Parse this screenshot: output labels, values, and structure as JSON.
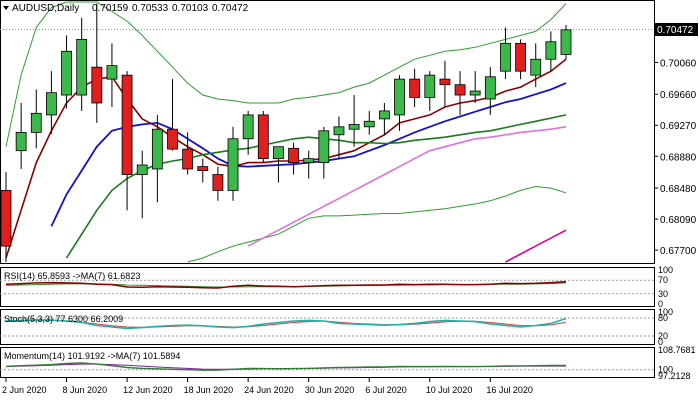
{
  "header": {
    "symbol": "AUDUSD,Daily",
    "open": "0.70159",
    "high": "0.70533",
    "low": "0.70103",
    "close": "0.70472"
  },
  "price_axis": {
    "ticks": [
      "0.70060",
      "0.69660",
      "0.69270",
      "0.68880",
      "0.68480",
      "0.68090",
      "0.67700"
    ],
    "current_price": "0.70472"
  },
  "rsi_pane": {
    "label": "RSI(14) 65.8593 ->MA(7) 61.6823",
    "ticks": [
      "100",
      "70",
      "30",
      "0"
    ]
  },
  "stoch_pane": {
    "label": "Stoch(5,3,3) 77.6300 66.2009",
    "ticks": [
      "100",
      "80",
      "20",
      "0"
    ]
  },
  "momentum_pane": {
    "label": "Momentum(14) 101.9192 ->MA(7) 101.5894",
    "ticks": [
      "108.7681",
      "100",
      "97.2128"
    ]
  },
  "time_axis": {
    "labels": [
      "2 Jun 2020",
      "8 Jun 2020",
      "12 Jun 2020",
      "18 Jun 2020",
      "24 Jun 2020",
      "30 Jun 2020",
      "6 Jul 2020",
      "10 Jul 2020",
      "16 Jul 2020"
    ]
  },
  "colors": {
    "bull_candle": "#3cb84a",
    "bear_candle": "#e01f1f",
    "ma_fast": "#8b0000",
    "ma_blue": "#1010d0",
    "ma_green": "#1a7a1a",
    "ma_magenta": "#e070e0",
    "ma_red_long": "#e000a0",
    "bollinger": "#2e9e2e",
    "rsi_line": "#8b0000",
    "rsi_ma": "#2e8b2e",
    "stoch_main": "#20b2aa",
    "stoch_signal": "#d04040",
    "momentum_line": "#2e7d32",
    "momentum_ma": "#7b1fa2"
  },
  "chart_data": {
    "type": "candlestick",
    "title": "AUDUSD,Daily",
    "ylim": [
      0.6755,
      0.7082
    ],
    "candles": [
      {
        "o": 0.6845,
        "h": 0.6868,
        "l": 0.6755,
        "c": 0.6775
      },
      {
        "o": 0.6895,
        "h": 0.6955,
        "l": 0.6872,
        "c": 0.6918
      },
      {
        "o": 0.6918,
        "h": 0.6972,
        "l": 0.6898,
        "c": 0.6942
      },
      {
        "o": 0.694,
        "h": 0.6995,
        "l": 0.6916,
        "c": 0.6968
      },
      {
        "o": 0.6965,
        "h": 0.704,
        "l": 0.6948,
        "c": 0.702
      },
      {
        "o": 0.6965,
        "h": 0.7062,
        "l": 0.6945,
        "c": 0.7035
      },
      {
        "o": 0.7,
        "h": 0.708,
        "l": 0.693,
        "c": 0.6955
      },
      {
        "o": 0.6985,
        "h": 0.703,
        "l": 0.695,
        "c": 0.7002
      },
      {
        "o": 0.699,
        "h": 0.6995,
        "l": 0.682,
        "c": 0.6865
      },
      {
        "o": 0.6865,
        "h": 0.6895,
        "l": 0.681,
        "c": 0.6877
      },
      {
        "o": 0.6872,
        "h": 0.694,
        "l": 0.683,
        "c": 0.6922
      },
      {
        "o": 0.6922,
        "h": 0.6985,
        "l": 0.6895,
        "c": 0.6897
      },
      {
        "o": 0.6897,
        "h": 0.6918,
        "l": 0.6865,
        "c": 0.6872
      },
      {
        "o": 0.6875,
        "h": 0.6885,
        "l": 0.6855,
        "c": 0.687
      },
      {
        "o": 0.6865,
        "h": 0.6875,
        "l": 0.6832,
        "c": 0.6845
      },
      {
        "o": 0.6845,
        "h": 0.6925,
        "l": 0.6832,
        "c": 0.691
      },
      {
        "o": 0.691,
        "h": 0.6945,
        "l": 0.689,
        "c": 0.694
      },
      {
        "o": 0.694,
        "h": 0.6945,
        "l": 0.688,
        "c": 0.6885
      },
      {
        "o": 0.6885,
        "h": 0.69,
        "l": 0.6855,
        "c": 0.69
      },
      {
        "o": 0.6898,
        "h": 0.6905,
        "l": 0.6865,
        "c": 0.688
      },
      {
        "o": 0.688,
        "h": 0.6895,
        "l": 0.686,
        "c": 0.6885
      },
      {
        "o": 0.688,
        "h": 0.6925,
        "l": 0.686,
        "c": 0.692
      },
      {
        "o": 0.6915,
        "h": 0.6938,
        "l": 0.6885,
        "c": 0.6925
      },
      {
        "o": 0.6922,
        "h": 0.6965,
        "l": 0.69,
        "c": 0.6928
      },
      {
        "o": 0.6925,
        "h": 0.6945,
        "l": 0.6915,
        "c": 0.6932
      },
      {
        "o": 0.6935,
        "h": 0.6955,
        "l": 0.6915,
        "c": 0.6945
      },
      {
        "o": 0.694,
        "h": 0.699,
        "l": 0.692,
        "c": 0.6985
      },
      {
        "o": 0.6985,
        "h": 0.6998,
        "l": 0.695,
        "c": 0.6962
      },
      {
        "o": 0.6962,
        "h": 0.6995,
        "l": 0.6945,
        "c": 0.699
      },
      {
        "o": 0.6985,
        "h": 0.7008,
        "l": 0.695,
        "c": 0.6978
      },
      {
        "o": 0.6978,
        "h": 0.6995,
        "l": 0.694,
        "c": 0.6965
      },
      {
        "o": 0.6965,
        "h": 0.6995,
        "l": 0.6955,
        "c": 0.697
      },
      {
        "o": 0.696,
        "h": 0.7,
        "l": 0.694,
        "c": 0.6988
      },
      {
        "o": 0.6995,
        "h": 0.705,
        "l": 0.6985,
        "c": 0.703
      },
      {
        "o": 0.703,
        "h": 0.7035,
        "l": 0.6985,
        "c": 0.6995
      },
      {
        "o": 0.699,
        "h": 0.703,
        "l": 0.6975,
        "c": 0.701
      },
      {
        "o": 0.701,
        "h": 0.7045,
        "l": 0.6995,
        "c": 0.7032
      },
      {
        "o": 0.7016,
        "h": 0.7053,
        "l": 0.701,
        "c": 0.7047
      }
    ],
    "x_labels": [
      "2 Jun 2020",
      "8 Jun 2020",
      "12 Jun 2020",
      "18 Jun 2020",
      "24 Jun 2020",
      "30 Jun 2020",
      "6 Jul 2020",
      "10 Jul 2020",
      "16 Jul 2020"
    ],
    "overlays": [
      {
        "key": "bb_upper",
        "values": [
          0.69,
          0.699,
          0.705,
          0.7075,
          0.7082,
          0.7082,
          0.7082,
          0.707,
          0.7058,
          0.704,
          0.702,
          0.7,
          0.698,
          0.6965,
          0.696,
          0.6958,
          0.6955,
          0.6955,
          0.6955,
          0.696,
          0.6962,
          0.6965,
          0.6968,
          0.6975,
          0.698,
          0.699,
          0.7,
          0.701,
          0.7015,
          0.702,
          0.7022,
          0.7025,
          0.703,
          0.7035,
          0.704,
          0.7045,
          0.706,
          0.708
        ]
      },
      {
        "key": "bb_lower",
        "values": [
          null,
          null,
          null,
          null,
          null,
          null,
          null,
          null,
          null,
          null,
          null,
          null,
          0.6755,
          0.676,
          0.6768,
          0.6775,
          0.678,
          0.6785,
          0.679,
          0.68,
          0.681,
          0.6813,
          0.6813,
          0.6814,
          0.6815,
          0.6816,
          0.6816,
          0.6818,
          0.682,
          0.6822,
          0.6825,
          0.6828,
          0.6832,
          0.6838,
          0.6845,
          0.685,
          0.6848,
          0.6842
        ]
      },
      {
        "key": "ma_fast",
        "values": [
          0.676,
          0.682,
          0.688,
          0.692,
          0.6955,
          0.6975,
          0.6985,
          0.6988,
          0.696,
          0.6935,
          0.6925,
          0.6912,
          0.69,
          0.689,
          0.6878,
          0.6875,
          0.688,
          0.688,
          0.6882,
          0.6882,
          0.6883,
          0.6885,
          0.689,
          0.6895,
          0.6905,
          0.6915,
          0.693,
          0.6935,
          0.694,
          0.695,
          0.6955,
          0.6958,
          0.6962,
          0.697,
          0.6975,
          0.6985,
          0.6995,
          0.701
        ]
      },
      {
        "key": "ma_blue",
        "values": [
          null,
          null,
          null,
          0.68,
          0.684,
          0.687,
          0.69,
          0.692,
          0.6925,
          0.6928,
          0.693,
          0.6922,
          0.691,
          0.6898,
          0.6885,
          0.6876,
          0.6875,
          0.6876,
          0.6877,
          0.6878,
          0.688,
          0.6882,
          0.6885,
          0.6888,
          0.6895,
          0.6902,
          0.691,
          0.6918,
          0.6925,
          0.6932,
          0.6938,
          0.6944,
          0.695,
          0.6956,
          0.696,
          0.6966,
          0.6972,
          0.698
        ]
      },
      {
        "key": "ma_green",
        "values": [
          null,
          null,
          null,
          null,
          0.676,
          0.679,
          0.682,
          0.6845,
          0.686,
          0.687,
          0.6878,
          0.6882,
          0.6885,
          0.689,
          0.6893,
          0.6896,
          0.6898,
          0.6902,
          0.6906,
          0.691,
          0.6912,
          0.691,
          0.6908,
          0.6905,
          0.6905,
          0.6904,
          0.6905,
          0.6908,
          0.691,
          0.6912,
          0.6915,
          0.6918,
          0.692,
          0.6924,
          0.6928,
          0.6932,
          0.6936,
          0.694
        ]
      },
      {
        "key": "ma_magenta",
        "values": [
          null,
          null,
          null,
          null,
          null,
          null,
          null,
          null,
          null,
          null,
          null,
          null,
          null,
          null,
          null,
          null,
          0.6775,
          0.6785,
          0.6795,
          0.6805,
          0.6815,
          0.6825,
          0.6835,
          0.6845,
          0.6855,
          0.6865,
          0.6875,
          0.6885,
          0.6895,
          0.69,
          0.6905,
          0.691,
          0.6912,
          0.6915,
          0.6918,
          0.692,
          0.6922,
          0.6925
        ]
      },
      {
        "key": "ma_red_long",
        "values": [
          null,
          null,
          null,
          null,
          null,
          null,
          null,
          null,
          null,
          null,
          null,
          null,
          null,
          null,
          null,
          null,
          null,
          null,
          null,
          null,
          null,
          null,
          null,
          null,
          null,
          null,
          null,
          null,
          null,
          null,
          null,
          null,
          null,
          0.6755,
          0.6765,
          0.6775,
          0.6785,
          0.6795
        ]
      }
    ],
    "rsi": [
      58,
      60,
      62,
      63,
      62,
      61,
      58,
      57,
      50,
      49,
      51,
      50,
      49,
      48,
      47,
      52,
      55,
      53,
      52,
      51,
      52,
      54,
      55,
      55,
      56,
      56,
      58,
      57,
      58,
      58,
      57,
      57,
      58,
      61,
      60,
      61,
      63,
      66
    ],
    "rsi_ma": [
      55,
      56,
      57,
      58,
      59,
      59,
      59,
      58,
      56,
      55,
      54,
      53,
      52,
      51,
      50,
      50,
      51,
      51,
      51,
      51,
      52,
      52,
      53,
      54,
      54,
      55,
      55,
      56,
      56,
      57,
      57,
      57,
      58,
      58,
      58,
      59,
      60,
      62
    ],
    "stoch_main": [
      70,
      72,
      74,
      73,
      70,
      65,
      55,
      50,
      45,
      48,
      52,
      55,
      56,
      54,
      50,
      48,
      52,
      60,
      65,
      70,
      72,
      70,
      62,
      60,
      58,
      56,
      58,
      62,
      68,
      72,
      70,
      68,
      60,
      55,
      50,
      55,
      62,
      78
    ],
    "stoch_signal": [
      68,
      70,
      72,
      72,
      70,
      66,
      60,
      54,
      50,
      49,
      50,
      52,
      54,
      54,
      52,
      50,
      51,
      55,
      60,
      65,
      68,
      70,
      66,
      62,
      60,
      58,
      57,
      59,
      63,
      67,
      69,
      69,
      65,
      60,
      55,
      54,
      57,
      66
    ],
    "momentum": [
      101.5,
      101.8,
      102.0,
      102.3,
      102.8,
      103.0,
      102.5,
      101.8,
      101.0,
      100.6,
      100.4,
      100.2,
      100.0,
      99.8,
      99.9,
      100.2,
      100.6,
      100.5,
      100.4,
      100.5,
      100.6,
      100.8,
      101.0,
      101.1,
      101.2,
      101.2,
      101.5,
      101.4,
      101.4,
      101.5,
      101.4,
      101.4,
      101.5,
      101.7,
      101.7,
      101.8,
      101.9,
      101.9
    ],
    "momentum_ma": [
      101.4,
      101.6,
      101.8,
      102.0,
      102.3,
      102.5,
      102.5,
      102.3,
      102.0,
      101.6,
      101.2,
      100.9,
      100.6,
      100.3,
      100.2,
      100.2,
      100.3,
      100.4,
      100.5,
      100.5,
      100.6,
      100.7,
      100.8,
      100.9,
      101.0,
      101.1,
      101.2,
      101.3,
      101.3,
      101.4,
      101.4,
      101.4,
      101.5,
      101.5,
      101.6,
      101.6,
      101.6,
      101.6
    ]
  }
}
